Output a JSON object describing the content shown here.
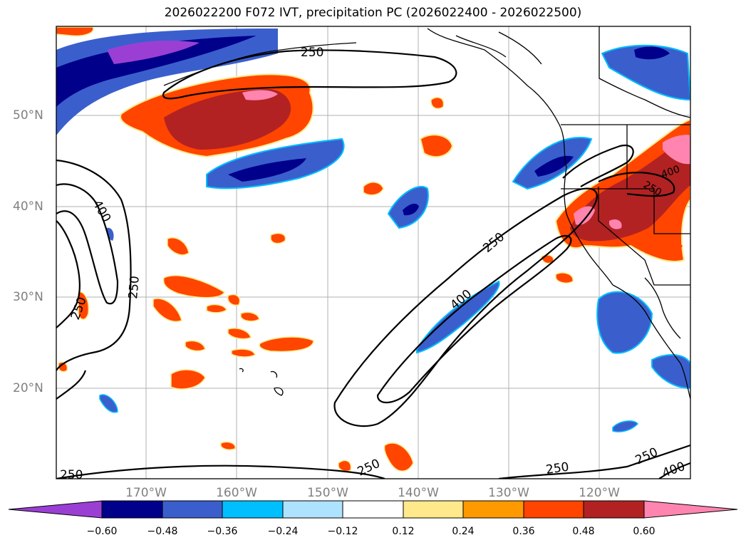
{
  "title": "2026022200 F072 IVT, precipitation PC (2026022400 - 2026022500)",
  "map": {
    "lat_labels": [
      "50°N",
      "40°N",
      "30°N",
      "20°N"
    ],
    "lon_labels": [
      "170°W",
      "160°W",
      "150°W",
      "140°W",
      "130°W",
      "120°W"
    ],
    "contour_labels": [
      "250",
      "400",
      "250",
      "250",
      "250",
      "400",
      "250",
      "250",
      "250",
      "250",
      "400",
      "250",
      "400"
    ]
  },
  "colorbar": {
    "ticks": [
      "−0.60",
      "−0.48",
      "−0.36",
      "−0.24",
      "−0.12",
      "0.12",
      "0.24",
      "0.36",
      "0.48",
      "0.60"
    ],
    "colors": [
      "#9b3fd4",
      "#00008b",
      "#3a5fcd",
      "#00bfff",
      "#aee3ff",
      "#ffffff",
      "#ffe98a",
      "#ff9900",
      "#ff4500",
      "#b22222",
      "#ff85b0"
    ]
  }
}
